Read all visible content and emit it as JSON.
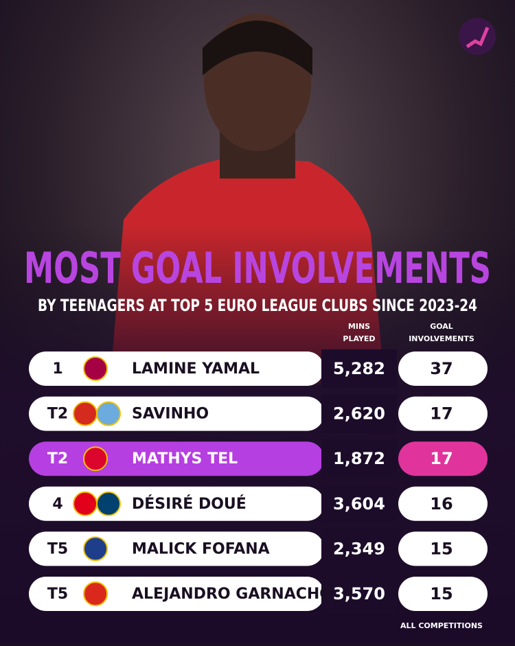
{
  "header": {
    "title": "MOST GOAL INVOLVEMENTS",
    "subtitle": "BY TEENAGERS AT TOP 5 EURO LEAGUE CLUBS SINCE 2023-24"
  },
  "table": {
    "columns": [
      [
        "MINS",
        "PLAYED"
      ],
      [
        "GOAL",
        "INVOLVEMENTS"
      ]
    ],
    "rows": [
      {
        "rank": "1",
        "player": "LAMINE YAMAL",
        "mins": "5,282",
        "goal_involvements": 37,
        "badges": [
          "#a50044"
        ]
      },
      {
        "rank": "T2",
        "player": "SAVINHO",
        "mins": "2,620",
        "goal_involvements": 17,
        "badges": [
          "#d52b1e",
          "#6cabdd"
        ]
      },
      {
        "rank": "T2",
        "player": "MATHYS TEL",
        "mins": "1,872",
        "goal_involvements": 17,
        "badges": [
          "#dc052d"
        ],
        "highlight": true
      },
      {
        "rank": "4",
        "player": "DÉSIRÉ DOUÉ",
        "mins": "3,604",
        "goal_involvements": 16,
        "badges": [
          "#e2001a",
          "#004170"
        ]
      },
      {
        "rank": "T5",
        "player": "MALICK FOFANA",
        "mins": "2,349",
        "goal_involvements": 15,
        "badges": [
          "#1e3e8c"
        ]
      },
      {
        "rank": "T5",
        "player": "ALEJANDRO GARNACHO",
        "mins": "3,570",
        "goal_involvements": 15,
        "badges": [
          "#da291c"
        ]
      }
    ]
  },
  "footnote": "ALL COMPETITIONS"
}
